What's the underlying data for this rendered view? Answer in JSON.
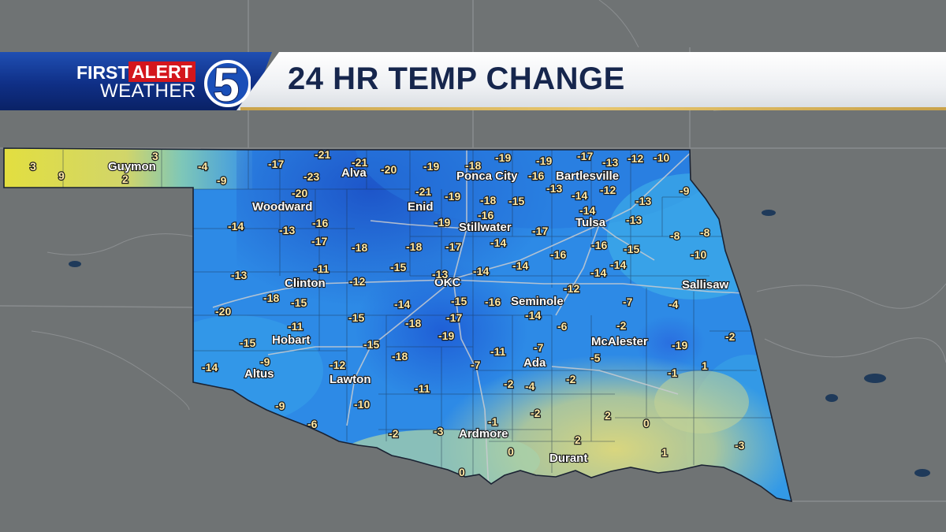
{
  "header": {
    "logo_first": "FIRST",
    "logo_alert": "ALERT",
    "logo_weather": "WEATHER",
    "logo_number": "5",
    "title": "24 HR TEMP CHANGE"
  },
  "colors": {
    "cold_strong": "#1f5fd6",
    "cold": "#2c8be6",
    "cool": "#3fb0ea",
    "neutral": "#9bcfb8",
    "warm": "#d6d57a",
    "warmest": "#e4df3a",
    "map_land": "#6e7173",
    "banner_blue": "#0f2f86",
    "alert_red": "#d4161c",
    "title_navy": "#16264d"
  },
  "cities": [
    {
      "name": "Guymon"
    },
    {
      "name": "Alva"
    },
    {
      "name": "Ponca City"
    },
    {
      "name": "Bartlesville"
    },
    {
      "name": "Woodward"
    },
    {
      "name": "Enid"
    },
    {
      "name": "Stillwater"
    },
    {
      "name": "Tulsa"
    },
    {
      "name": "Clinton"
    },
    {
      "name": "OKC"
    },
    {
      "name": "Sallisaw"
    },
    {
      "name": "Seminole"
    },
    {
      "name": "Hobart"
    },
    {
      "name": "McAlester"
    },
    {
      "name": "Altus"
    },
    {
      "name": "Lawton"
    },
    {
      "name": "Ada"
    },
    {
      "name": "Ardmore"
    },
    {
      "name": "Durant"
    }
  ],
  "values": [
    "3",
    "9",
    "3",
    "2",
    "-4",
    "-9",
    "-17",
    "-21",
    "-23",
    "-21",
    "-20",
    "-19",
    "-18",
    "-19",
    "-16",
    "-19",
    "-17",
    "-13",
    "-12",
    "-10",
    "-13",
    "-12",
    "-9",
    "-20",
    "-21",
    "-19",
    "-18",
    "-15",
    "-14",
    "-13",
    "-14",
    "-13",
    "-16",
    "-16",
    "-19",
    "-17",
    "-14",
    "-13",
    "-17",
    "-18",
    "-18",
    "-17",
    "-14",
    "-14",
    "-16",
    "-16",
    "-15",
    "-8",
    "-8",
    "-10",
    "-13",
    "-11",
    "-12",
    "-15",
    "-14",
    "-14",
    "-14",
    "-12",
    "-13",
    "-20",
    "-18",
    "-15",
    "-14",
    "-15",
    "-16",
    "-7",
    "-4",
    "-11",
    "-15",
    "-18",
    "-17",
    "-14",
    "-6",
    "-2",
    "-15",
    "-15",
    "-19",
    "-19",
    "-2",
    "-14",
    "-9",
    "-12",
    "-18",
    "-11",
    "-7",
    "-5",
    "-7",
    "-1",
    "1",
    "-11",
    "-2",
    "-4",
    "-2",
    "-9",
    "-10",
    "-6",
    "-1",
    "-2",
    "2",
    "0",
    "-2",
    "-3",
    "2",
    "1",
    "-3",
    "0",
    "0"
  ]
}
